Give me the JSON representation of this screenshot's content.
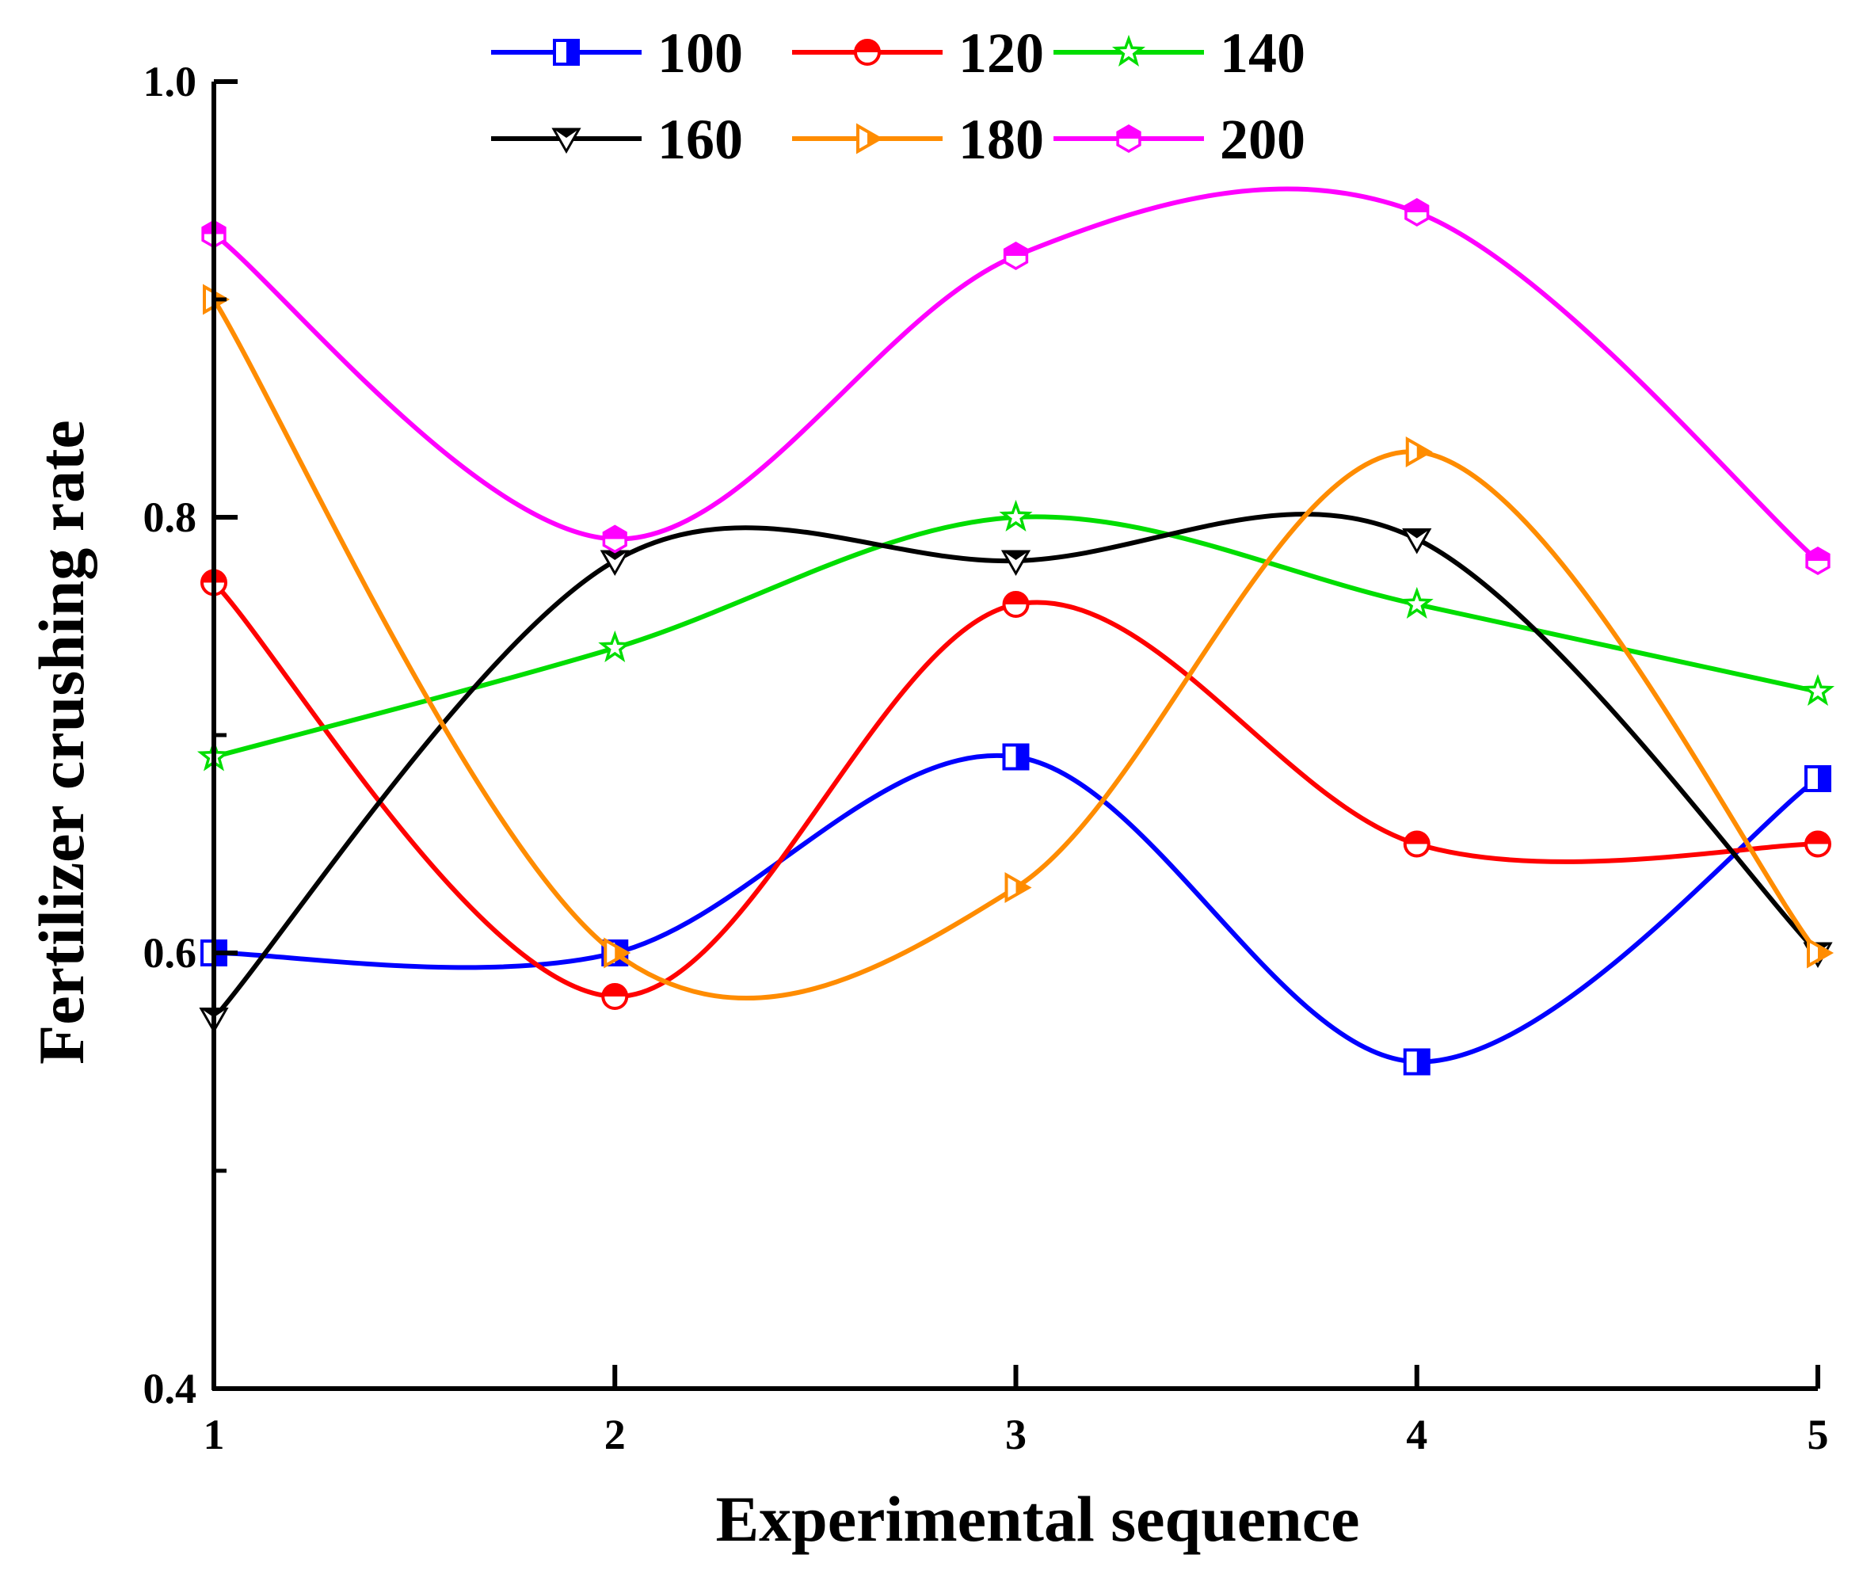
{
  "chart_data": {
    "type": "line",
    "title": "",
    "xlabel": "Experimental sequence",
    "ylabel": "Fertilizer crushing rate",
    "x": [
      1,
      2,
      3,
      4,
      5
    ],
    "x_ticks": [
      "1",
      "2",
      "3",
      "4",
      "5"
    ],
    "y_ticks": [
      "0.4",
      "0.6",
      "0.8",
      "1.0"
    ],
    "xlim": [
      1,
      5
    ],
    "ylim": [
      0.4,
      1.0
    ],
    "grid": false,
    "legend_position": "top",
    "series": [
      {
        "name": "100",
        "color": "#0000ff",
        "marker": "square",
        "values": [
          0.6,
          0.6,
          0.69,
          0.55,
          0.68
        ]
      },
      {
        "name": "120",
        "color": "#ff0000",
        "marker": "circle",
        "values": [
          0.77,
          0.58,
          0.76,
          0.65,
          0.65
        ]
      },
      {
        "name": "140",
        "color": "#00dd00",
        "marker": "star",
        "values": [
          0.69,
          0.74,
          0.8,
          0.76,
          0.72
        ]
      },
      {
        "name": "160",
        "color": "#000000",
        "marker": "triangle-down",
        "values": [
          0.57,
          0.78,
          0.78,
          0.79,
          0.6
        ]
      },
      {
        "name": "180",
        "color": "#ff8c00",
        "marker": "triangle-right",
        "values": [
          0.9,
          0.6,
          0.63,
          0.83,
          0.6
        ]
      },
      {
        "name": "200",
        "color": "#ff00ff",
        "marker": "hexagon",
        "values": [
          0.93,
          0.79,
          0.92,
          0.94,
          0.78
        ]
      }
    ]
  }
}
